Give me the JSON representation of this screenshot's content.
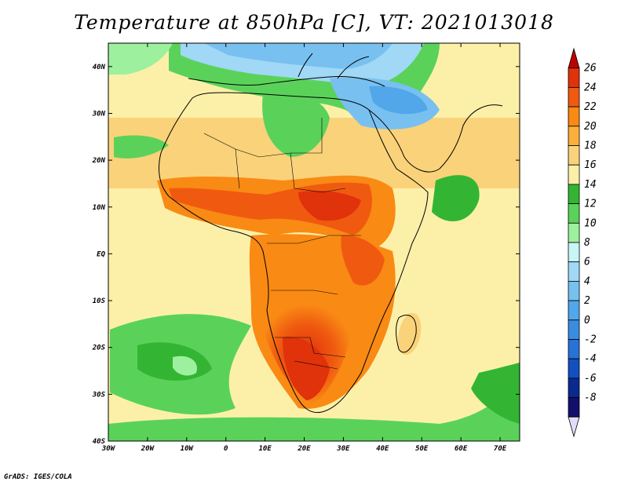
{
  "title": "Temperature at 850hPa [C], VT: 2021013018",
  "credit": "GrADS: IGES/COLA",
  "lat_ticks": [
    {
      "label": "40N",
      "lat": 40
    },
    {
      "label": "30N",
      "lat": 30
    },
    {
      "label": "20N",
      "lat": 20
    },
    {
      "label": "10N",
      "lat": 10
    },
    {
      "label": "EQ",
      "lat": 0
    },
    {
      "label": "10S",
      "lat": -10
    },
    {
      "label": "20S",
      "lat": -20
    },
    {
      "label": "30S",
      "lat": -30
    },
    {
      "label": "40S",
      "lat": -40
    }
  ],
  "lon_ticks": [
    {
      "label": "30W",
      "lon": -30
    },
    {
      "label": "20W",
      "lon": -20
    },
    {
      "label": "10W",
      "lon": -10
    },
    {
      "label": "0",
      "lon": 0
    },
    {
      "label": "10E",
      "lon": 10
    },
    {
      "label": "20E",
      "lon": 20
    },
    {
      "label": "30E",
      "lon": 30
    },
    {
      "label": "40E",
      "lon": 40
    },
    {
      "label": "50E",
      "lon": 50
    },
    {
      "label": "60E",
      "lon": 60
    },
    {
      "label": "70E",
      "lon": 70
    }
  ],
  "colorbar": {
    "labels": [
      "26",
      "24",
      "22",
      "20",
      "18",
      "16",
      "14",
      "12",
      "10",
      "8",
      "6",
      "4",
      "2",
      "0",
      "-2",
      "-4",
      "-6",
      "-8"
    ],
    "colors": [
      "#bf0000",
      "#e0320b",
      "#f05a10",
      "#f98a14",
      "#fbb03b",
      "#fad27a",
      "#fcf0a8",
      "#33b533",
      "#5ad25a",
      "#9df09d",
      "#c8f5f5",
      "#a0d8f5",
      "#78c0f0",
      "#52a6ea",
      "#3a8ce0",
      "#2772d6",
      "#1250c0",
      "#0a2a8e",
      "#12106a",
      "#e2dcfa"
    ]
  }
}
